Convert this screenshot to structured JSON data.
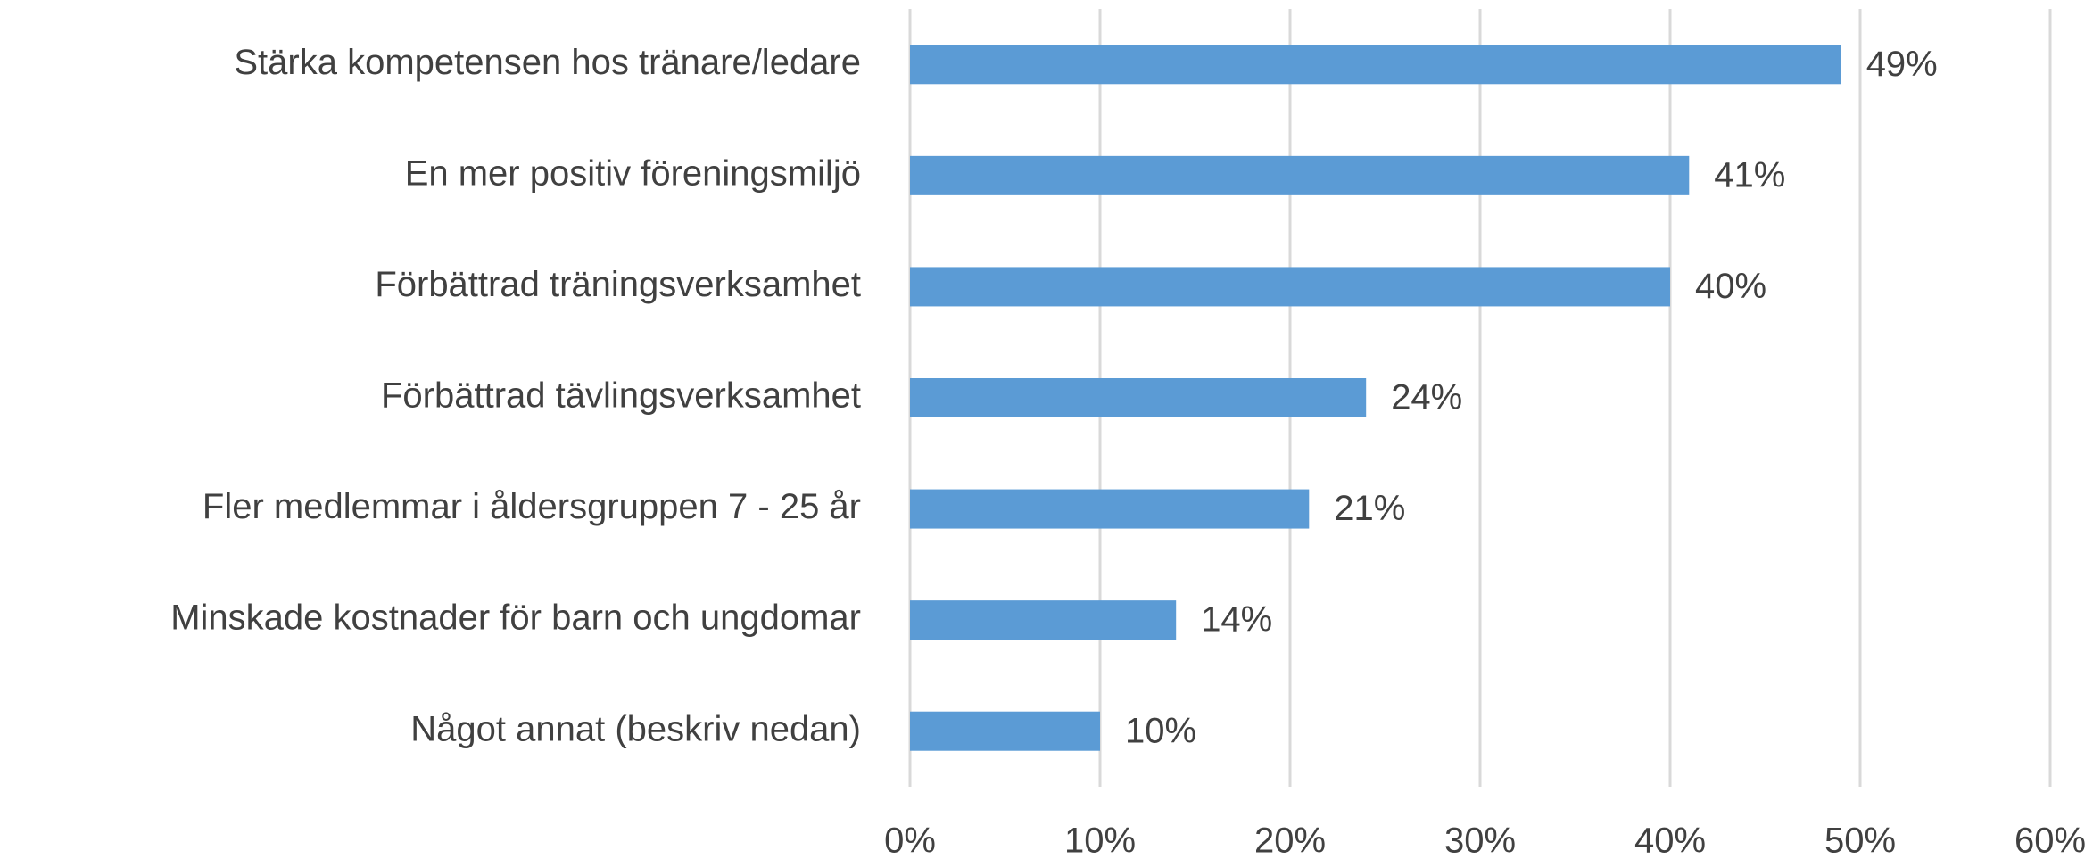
{
  "chart_data": {
    "type": "bar",
    "orientation": "horizontal",
    "categories": [
      "Stärka kompetensen hos tränare/ledare",
      "En mer positiv föreningsmiljö",
      "Förbättrad träningsverksamhet",
      "Förbättrad tävlingsverksamhet",
      "Fler medlemmar i åldersgruppen 7 - 25 år",
      "Minskade kostnader för barn och ungdomar",
      "Något annat (beskriv nedan)"
    ],
    "values": [
      49,
      41,
      40,
      24,
      21,
      14,
      10
    ],
    "value_labels": [
      "49%",
      "41%",
      "40%",
      "24%",
      "21%",
      "14%",
      "10%"
    ],
    "color": "#5b9bd5",
    "xlim": [
      0,
      60
    ],
    "xticks": [
      {
        "value": 0,
        "label": "0%"
      },
      {
        "value": 10,
        "label": "10%"
      },
      {
        "value": 20,
        "label": "20%"
      },
      {
        "value": 30,
        "label": "30%"
      },
      {
        "value": 40,
        "label": "40%"
      },
      {
        "value": 50,
        "label": "50%"
      },
      {
        "value": 60,
        "label": "60%"
      }
    ],
    "grid": true
  }
}
